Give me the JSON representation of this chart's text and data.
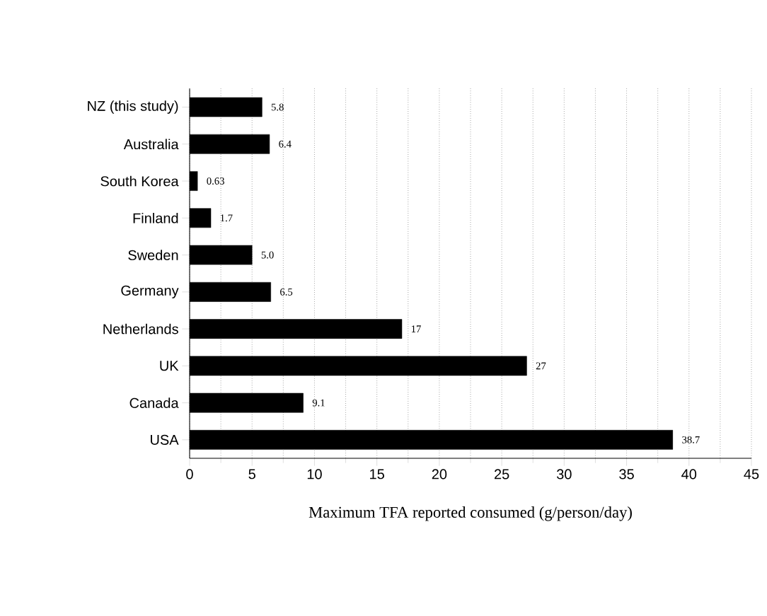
{
  "chart_data": {
    "type": "bar",
    "orientation": "horizontal",
    "categories": [
      "NZ (this study)",
      "Australia",
      "South Korea",
      "Finland",
      "Sweden",
      "Germany",
      "Netherlands",
      "UK",
      "Canada",
      "USA"
    ],
    "values": [
      5.8,
      6.4,
      0.63,
      1.7,
      5.0,
      6.5,
      17,
      27,
      9.1,
      38.7
    ],
    "value_labels": [
      "5.8",
      "6.4",
      "0.63",
      "1.7",
      "5.0",
      "6.5",
      "17",
      "27",
      "9.1",
      "38.7"
    ],
    "color": "#000000",
    "xlabel": "Maximum TFA reported consumed (g/person/day)",
    "xlim": [
      0,
      45
    ],
    "xticks": [
      0,
      5,
      10,
      15,
      20,
      25,
      30,
      35,
      40,
      45
    ],
    "grid": "x"
  }
}
